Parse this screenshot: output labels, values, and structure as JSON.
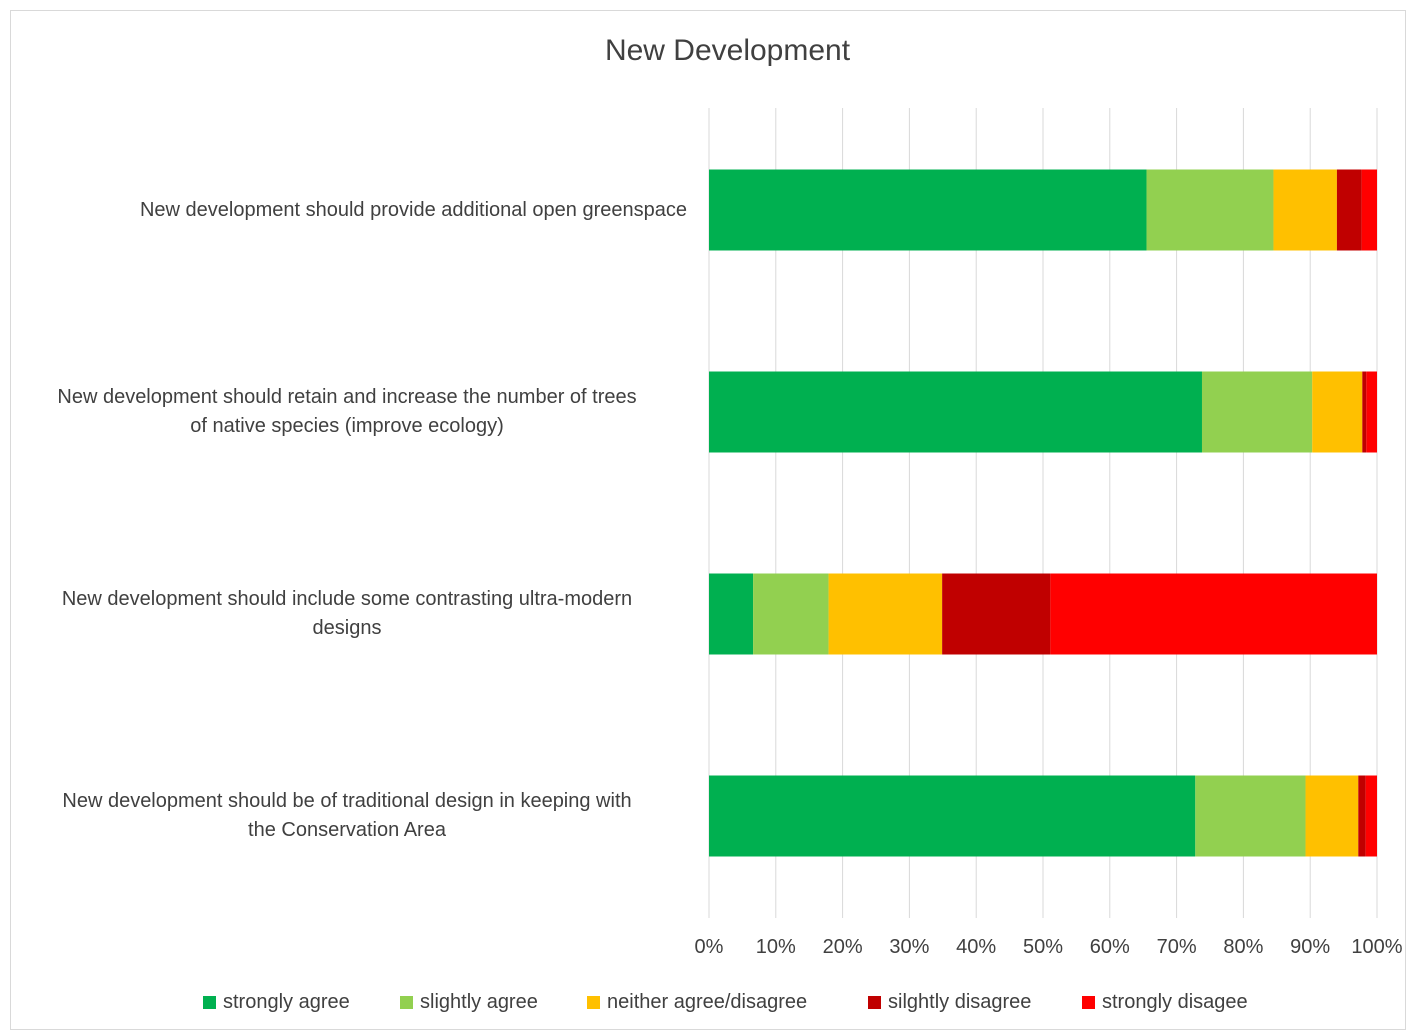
{
  "chart_data": {
    "type": "bar",
    "orientation": "horizontal",
    "stacked": "percent",
    "title": "New Development",
    "categories": [
      "New development should provide additional open greenspace",
      "New development should retain and  increase the number of trees of native species (improve ecology)",
      "New development should include some contrasting  ultra-modern designs",
      "New development should be of traditional design in keeping with the Conservation Area"
    ],
    "category_lines": [
      [
        "New development should provide additional open greenspace"
      ],
      [
        "New development should retain and  increase the number of trees",
        "of native species (improve ecology)"
      ],
      [
        "New development should include some contrasting  ultra-modern",
        "designs"
      ],
      [
        "New development should be of traditional design in keeping with",
        "the Conservation Area"
      ]
    ],
    "series": [
      {
        "name": "strongly agree",
        "color": "#00b050",
        "values": [
          65.5,
          73.8,
          6.6,
          72.8
        ]
      },
      {
        "name": "slightly agree",
        "color": "#92d050",
        "values": [
          19.0,
          16.5,
          11.3,
          16.5
        ]
      },
      {
        "name": "neither agree/disagree",
        "color": "#ffc000",
        "values": [
          9.5,
          7.5,
          17.0,
          7.9
        ]
      },
      {
        "name": "silghtly disagree",
        "color": "#c00000",
        "values": [
          3.7,
          0.6,
          16.2,
          1.1
        ]
      },
      {
        "name": "strongly disagee",
        "color": "#ff0000",
        "values": [
          2.3,
          1.6,
          48.9,
          1.7
        ]
      }
    ],
    "xlim": [
      0,
      100
    ],
    "xticks": [
      "0%",
      "10%",
      "20%",
      "30%",
      "40%",
      "50%",
      "60%",
      "70%",
      "80%",
      "90%",
      "100%"
    ],
    "grid": true,
    "legend": "bottom"
  }
}
